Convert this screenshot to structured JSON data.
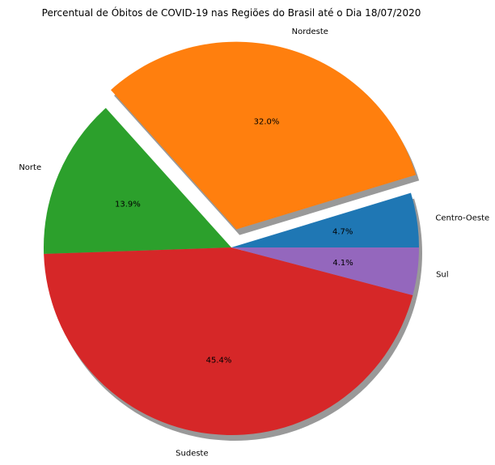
{
  "chart_data": {
    "type": "pie",
    "title": "Percentual de Óbitos de COVID-19 nas Regiões do Brasil até o Dia 18/07/2020",
    "labels": [
      "Centro-Oeste",
      "Nordeste",
      "Norte",
      "Sudeste",
      "Sul"
    ],
    "values": [
      4.7,
      32.0,
      13.9,
      45.4,
      4.1
    ],
    "value_labels": [
      "4.7%",
      "32.0%",
      "13.9%",
      "45.4%",
      "4.1%"
    ],
    "colors": [
      "#1f77b4",
      "#ff7f0e",
      "#2ca02c",
      "#d62728",
      "#9467bd"
    ],
    "explode": [
      0,
      0.1,
      0,
      0,
      0
    ],
    "start_angle_deg": 0,
    "direction": "counterclockwise",
    "shadow": true
  }
}
